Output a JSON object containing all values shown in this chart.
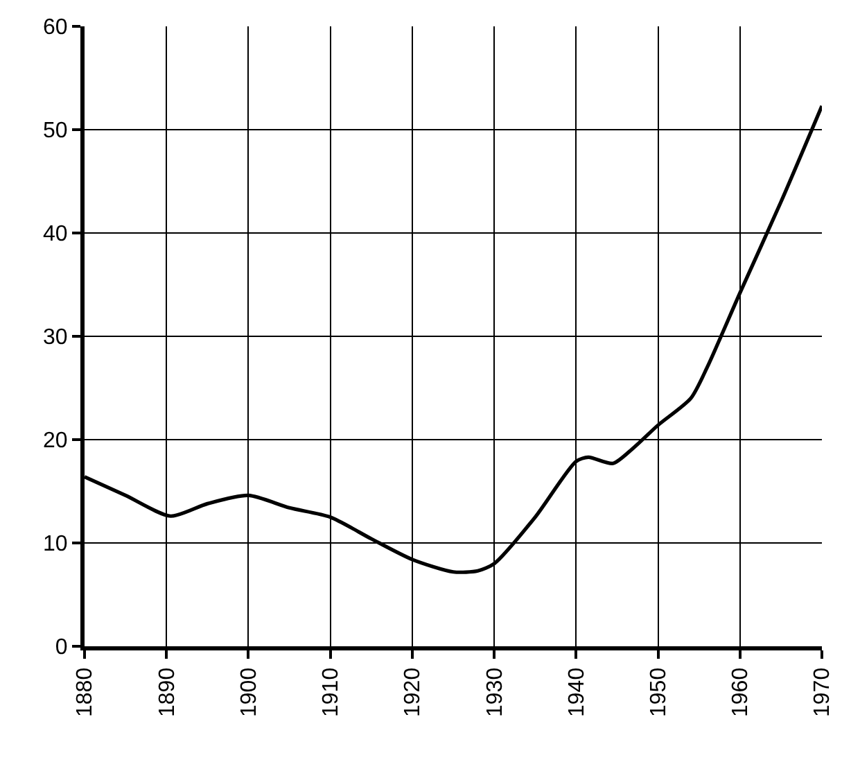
{
  "chart_data": {
    "type": "line",
    "x": [
      1880,
      1885,
      1890.5,
      1895,
      1900,
      1905,
      1910,
      1915,
      1920,
      1925,
      1928,
      1930,
      1935,
      1940,
      1941.5,
      1944.5,
      1947,
      1950,
      1954,
      1956,
      1960,
      1965,
      1970
    ],
    "values": [
      16.4,
      14.6,
      12.6,
      13.8,
      14.6,
      13.4,
      12.5,
      10.4,
      8.4,
      7.2,
      7.3,
      8.0,
      12.5,
      17.9,
      18.3,
      17.7,
      19.2,
      21.4,
      24.0,
      27.0,
      34.2,
      43.0,
      52.3
    ],
    "color": "#000000",
    "line_style": "solid",
    "xlim": [
      1880,
      1970
    ],
    "xticks": [
      1880,
      1890,
      1900,
      1910,
      1920,
      1930,
      1940,
      1950,
      1960,
      1970
    ],
    "ylim": [
      0,
      60
    ],
    "yticks": [
      0,
      10,
      20,
      30,
      40,
      50,
      60
    ],
    "grid": true
  }
}
